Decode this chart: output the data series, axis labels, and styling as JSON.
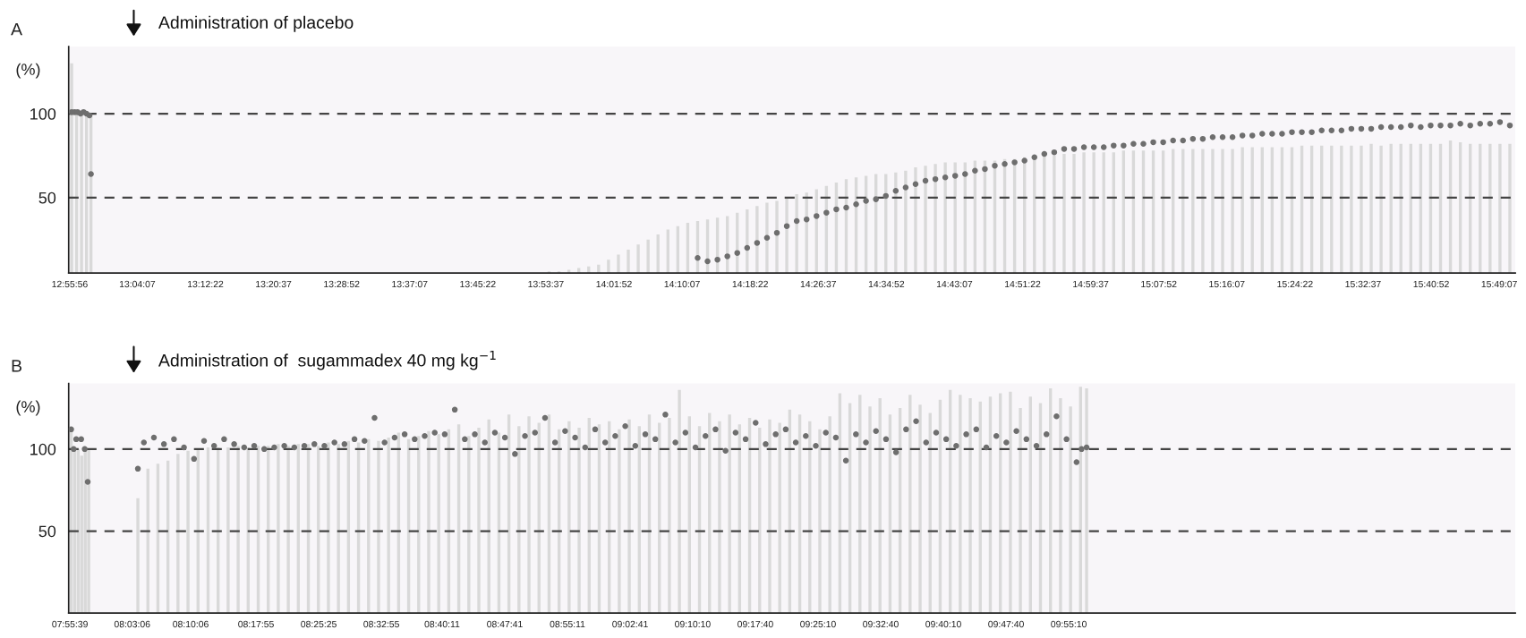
{
  "chart_data": [
    {
      "type": "bar",
      "annotations": [
        "A"
      ],
      "title": "Administration of placebo",
      "ylabel": "(%)",
      "xlim": [
        12.93,
        15.851
      ],
      "ylim": [
        5,
        140
      ],
      "yticks": [
        50,
        100
      ],
      "xticks": [
        {
          "value": 12.9322,
          "label": "12:55:56"
        },
        {
          "value": 13.0686,
          "label": "13:04:07"
        },
        {
          "value": 13.2061,
          "label": "13:12:22"
        },
        {
          "value": 13.3436,
          "label": "13:20:37"
        },
        {
          "value": 13.4811,
          "label": "13:28:52"
        },
        {
          "value": 13.6186,
          "label": "13:37:07"
        },
        {
          "value": 13.7561,
          "label": "13:45:22"
        },
        {
          "value": 13.8936,
          "label": "13:53:37"
        },
        {
          "value": 14.0311,
          "label": "14:01:52"
        },
        {
          "value": 14.1686,
          "label": "14:10:07"
        },
        {
          "value": 14.3061,
          "label": "14:18:22"
        },
        {
          "value": 14.4436,
          "label": "14:26:37"
        },
        {
          "value": 14.5811,
          "label": "14:34:52"
        },
        {
          "value": 14.7186,
          "label": "14:43:07"
        },
        {
          "value": 14.8561,
          "label": "14:51:22"
        },
        {
          "value": 14.9936,
          "label": "14:59:37"
        },
        {
          "value": 15.1311,
          "label": "15:07:52"
        },
        {
          "value": 15.2686,
          "label": "15:16:07"
        },
        {
          "value": 15.4061,
          "label": "15:24:22"
        },
        {
          "value": 15.5436,
          "label": "15:32:37"
        },
        {
          "value": 15.6811,
          "label": "15:40:52"
        },
        {
          "value": 15.8186,
          "label": "15:49:07"
        }
      ],
      "ref_lines": [
        {
          "axis": "y",
          "value": 100,
          "color": "#444444",
          "line_style": "dashed"
        },
        {
          "axis": "y",
          "value": 50,
          "color": "#444444",
          "line_style": "dashed"
        }
      ],
      "grid": false,
      "series": [
        {
          "color": "#d9d9d9",
          "x": [
            12.936,
            12.946,
            12.956,
            12.966,
            12.975,
            13.9,
            13.92,
            13.94,
            13.96,
            13.98,
            14.0,
            14.02,
            14.04,
            14.06,
            14.08,
            14.1,
            14.12,
            14.14,
            14.16,
            14.18,
            14.2,
            14.22,
            14.24,
            14.26,
            14.28,
            14.3,
            14.32,
            14.34,
            14.36,
            14.38,
            14.4,
            14.42,
            14.44,
            14.46,
            14.48,
            14.5,
            14.52,
            14.54,
            14.56,
            14.58,
            14.6,
            14.62,
            14.64,
            14.66,
            14.68,
            14.7,
            14.72,
            14.74,
            14.76,
            14.78,
            14.8,
            14.82,
            14.84,
            14.86,
            14.88,
            14.9,
            14.92,
            14.94,
            14.96,
            14.98,
            15.0,
            15.02,
            15.04,
            15.06,
            15.08,
            15.1,
            15.12,
            15.14,
            15.16,
            15.18,
            15.2,
            15.22,
            15.24,
            15.26,
            15.28,
            15.3,
            15.32,
            15.34,
            15.36,
            15.38,
            15.4,
            15.42,
            15.44,
            15.46,
            15.48,
            15.5,
            15.52,
            15.54,
            15.56,
            15.58,
            15.6,
            15.62,
            15.64,
            15.66,
            15.68,
            15.7,
            15.72,
            15.74,
            15.76,
            15.78,
            15.8,
            15.82,
            15.84
          ],
          "values": [
            130,
            100,
            100,
            100,
            100,
            6,
            6,
            7,
            8,
            9,
            10,
            13,
            16,
            19,
            22,
            25,
            28,
            31,
            33,
            35,
            36,
            37,
            38,
            39,
            41,
            43,
            45,
            47,
            48,
            50,
            52,
            53,
            55,
            57,
            59,
            61,
            62,
            63,
            64,
            64,
            65,
            66,
            68,
            69,
            70,
            71,
            71,
            71,
            72,
            72,
            72,
            73,
            73,
            74,
            74,
            75,
            75,
            76,
            76,
            77,
            77,
            77,
            77,
            78,
            78,
            78,
            78,
            78,
            79,
            79,
            79,
            79,
            79,
            79,
            79,
            80,
            80,
            80,
            80,
            80,
            80,
            81,
            81,
            81,
            81,
            81,
            81,
            81,
            82,
            81,
            82,
            82,
            82,
            82,
            82,
            82,
            84,
            83,
            82,
            82,
            82,
            82,
            82
          ]
        },
        {
          "type": "scatter",
          "color": "#6e6e6e",
          "marker": "circle",
          "x": [
            12.936,
            12.942,
            12.948,
            12.954,
            12.96,
            12.966,
            12.972,
            12.975,
            14.2,
            14.22,
            14.24,
            14.26,
            14.28,
            14.3,
            14.32,
            14.34,
            14.36,
            14.38,
            14.4,
            14.42,
            14.44,
            14.46,
            14.48,
            14.5,
            14.52,
            14.54,
            14.56,
            14.58,
            14.6,
            14.62,
            14.64,
            14.66,
            14.68,
            14.7,
            14.72,
            14.74,
            14.76,
            14.78,
            14.8,
            14.82,
            14.84,
            14.86,
            14.88,
            14.9,
            14.92,
            14.94,
            14.96,
            14.98,
            15.0,
            15.02,
            15.04,
            15.06,
            15.08,
            15.1,
            15.12,
            15.14,
            15.16,
            15.18,
            15.2,
            15.22,
            15.24,
            15.26,
            15.28,
            15.3,
            15.32,
            15.34,
            15.36,
            15.38,
            15.4,
            15.42,
            15.44,
            15.46,
            15.48,
            15.5,
            15.52,
            15.54,
            15.56,
            15.58,
            15.6,
            15.62,
            15.64,
            15.66,
            15.68,
            15.7,
            15.72,
            15.74,
            15.76,
            15.78,
            15.8,
            15.82,
            15.84
          ],
          "values": [
            101,
            101,
            101,
            100,
            101,
            100,
            99,
            64,
            14,
            12,
            13,
            15,
            17,
            20,
            23,
            26,
            29,
            33,
            36,
            37,
            39,
            41,
            43,
            44,
            46,
            48,
            49,
            51,
            54,
            56,
            58,
            60,
            61,
            62,
            63,
            64,
            66,
            67,
            69,
            70,
            71,
            72,
            74,
            76,
            77,
            79,
            79,
            80,
            80,
            80,
            81,
            81,
            82,
            82,
            83,
            83,
            84,
            84,
            85,
            85,
            86,
            86,
            86,
            87,
            87,
            88,
            88,
            88,
            89,
            89,
            89,
            90,
            90,
            90,
            91,
            91,
            91,
            92,
            92,
            92,
            93,
            92,
            93,
            93,
            93,
            94,
            93,
            94,
            94,
            95,
            93
          ]
        }
      ]
    },
    {
      "type": "bar",
      "annotations": [
        "B"
      ],
      "title": "Administration of  sugammadex 40 mg kg$^{−1}$",
      "ylabel": "(%)",
      "xlim": [
        7.925,
        10.81
      ],
      "ylim": [
        0,
        140
      ],
      "yticks": [
        50,
        100
      ],
      "xticks": [
        {
          "value": 7.9275,
          "label": "07:55:39"
        },
        {
          "value": 8.0517,
          "label": "08:03:06"
        },
        {
          "value": 8.1683,
          "label": "08:10:06"
        },
        {
          "value": 8.2986,
          "label": "08:17:55"
        },
        {
          "value": 8.4236,
          "label": "08:25:25"
        },
        {
          "value": 8.5486,
          "label": "08:32:55"
        },
        {
          "value": 8.6697,
          "label": "08:40:11"
        },
        {
          "value": 8.7947,
          "label": "08:47:41"
        },
        {
          "value": 8.9197,
          "label": "08:55:11"
        },
        {
          "value": 9.0447,
          "label": "09:02:41"
        },
        {
          "value": 9.1694,
          "label": "09:10:10"
        },
        {
          "value": 9.2944,
          "label": "09:17:40"
        },
        {
          "value": 9.4194,
          "label": "09:25:10"
        },
        {
          "value": 9.5444,
          "label": "09:32:40"
        },
        {
          "value": 9.6694,
          "label": "09:40:10"
        },
        {
          "value": 9.7944,
          "label": "09:47:40"
        },
        {
          "value": 9.9194,
          "label": "09:55:10"
        }
      ],
      "ref_lines": [
        {
          "axis": "y",
          "value": 100,
          "color": "#444444",
          "line_style": "dashed"
        },
        {
          "axis": "y",
          "value": 50,
          "color": "#444444",
          "line_style": "dashed"
        }
      ],
      "grid": false,
      "series": [
        {
          "color": "#d9d9d9",
          "x": [
            7.93,
            7.937,
            7.944,
            7.951,
            7.958,
            7.965,
            8.063,
            8.083,
            8.103,
            8.123,
            8.143,
            8.163,
            8.183,
            8.203,
            8.223,
            8.243,
            8.263,
            8.283,
            8.303,
            8.323,
            8.343,
            8.363,
            8.383,
            8.403,
            8.423,
            8.443,
            8.463,
            8.483,
            8.503,
            8.523,
            8.543,
            8.563,
            8.583,
            8.603,
            8.623,
            8.643,
            8.663,
            8.683,
            8.703,
            8.723,
            8.743,
            8.763,
            8.783,
            8.803,
            8.823,
            8.843,
            8.863,
            8.883,
            8.903,
            8.923,
            8.943,
            8.963,
            8.983,
            9.003,
            9.023,
            9.043,
            9.063,
            9.083,
            9.103,
            9.123,
            9.143,
            9.163,
            9.183,
            9.203,
            9.223,
            9.243,
            9.263,
            9.283,
            9.303,
            9.323,
            9.343,
            9.363,
            9.383,
            9.403,
            9.423,
            9.443,
            9.463,
            9.483,
            9.503,
            9.523,
            9.543,
            9.563,
            9.583,
            9.603,
            9.623,
            9.643,
            9.663,
            9.683,
            9.703,
            9.723,
            9.743,
            9.763,
            9.783,
            9.803,
            9.823,
            9.843,
            9.863,
            9.883,
            9.903,
            9.923,
            9.943,
            9.955
          ],
          "values": [
            112,
            100,
            100,
            96,
            100,
            100,
            70,
            88,
            91,
            93,
            97,
            99,
            100,
            101,
            101,
            101,
            102,
            101,
            102,
            102,
            103,
            102,
            103,
            103,
            102,
            104,
            103,
            105,
            104,
            106,
            105,
            107,
            110,
            106,
            108,
            111,
            109,
            112,
            115,
            108,
            113,
            118,
            110,
            121,
            114,
            120,
            116,
            121,
            112,
            117,
            113,
            119,
            115,
            117,
            112,
            118,
            114,
            121,
            116,
            119,
            136,
            120,
            114,
            122,
            117,
            121,
            115,
            119,
            113,
            118,
            116,
            124,
            121,
            117,
            112,
            120,
            134,
            128,
            133,
            126,
            131,
            121,
            125,
            133,
            127,
            122,
            130,
            136,
            133,
            131,
            129,
            132,
            134,
            135,
            125,
            132,
            128,
            137,
            131,
            126,
            138,
            137
          ]
        },
        {
          "type": "scatter",
          "color": "#6e6e6e",
          "marker": "circle",
          "x": [
            7.93,
            7.935,
            7.94,
            7.95,
            7.957,
            7.963,
            8.063,
            8.075,
            8.095,
            8.115,
            8.135,
            8.155,
            8.175,
            8.195,
            8.215,
            8.235,
            8.255,
            8.275,
            8.295,
            8.315,
            8.335,
            8.355,
            8.375,
            8.395,
            8.415,
            8.435,
            8.455,
            8.475,
            8.495,
            8.515,
            8.535,
            8.555,
            8.575,
            8.595,
            8.615,
            8.635,
            8.655,
            8.675,
            8.695,
            8.715,
            8.735,
            8.755,
            8.775,
            8.795,
            8.815,
            8.835,
            8.855,
            8.875,
            8.895,
            8.915,
            8.935,
            8.955,
            8.975,
            8.995,
            9.015,
            9.035,
            9.055,
            9.075,
            9.095,
            9.115,
            9.135,
            9.155,
            9.175,
            9.195,
            9.215,
            9.235,
            9.255,
            9.275,
            9.295,
            9.315,
            9.335,
            9.355,
            9.375,
            9.395,
            9.415,
            9.435,
            9.455,
            9.475,
            9.495,
            9.515,
            9.535,
            9.555,
            9.575,
            9.595,
            9.615,
            9.635,
            9.655,
            9.675,
            9.695,
            9.715,
            9.735,
            9.755,
            9.775,
            9.795,
            9.815,
            9.835,
            9.855,
            9.875,
            9.895,
            9.915,
            9.935,
            9.945,
            9.955
          ],
          "values": [
            112,
            100,
            106,
            106,
            100,
            80,
            88,
            104,
            107,
            103,
            106,
            101,
            94,
            105,
            102,
            106,
            103,
            101,
            102,
            100,
            101,
            102,
            101,
            102,
            103,
            102,
            104,
            103,
            106,
            105,
            119,
            104,
            107,
            109,
            106,
            108,
            110,
            109,
            124,
            106,
            109,
            104,
            110,
            107,
            97,
            108,
            110,
            119,
            104,
            111,
            107,
            101,
            112,
            104,
            108,
            114,
            102,
            109,
            106,
            121,
            104,
            110,
            101,
            108,
            112,
            99,
            110,
            106,
            116,
            103,
            109,
            112,
            104,
            108,
            102,
            110,
            107,
            93,
            109,
            104,
            111,
            106,
            98,
            112,
            117,
            104,
            110,
            106,
            102,
            109,
            112,
            101,
            108,
            104,
            111,
            106,
            102,
            109,
            120,
            106,
            92,
            100,
            101
          ]
        }
      ]
    }
  ]
}
